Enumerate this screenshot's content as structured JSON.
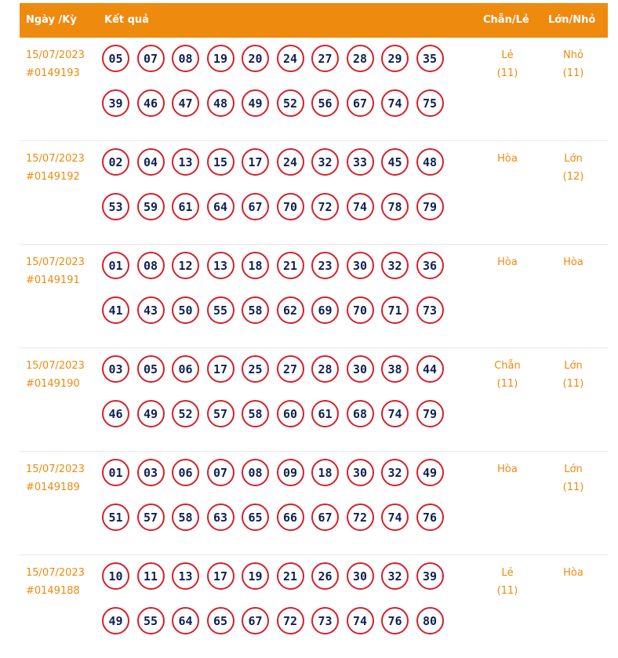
{
  "header": {
    "date_label": "Ngày /Kỳ",
    "result_label": "Kết quả",
    "parity_label": "Chẵn/Lẻ",
    "size_label": "Lớn/Nhỏ"
  },
  "rows": [
    {
      "date": "15/07/2023",
      "draw": "#0149193",
      "numbers_row1": [
        "05",
        "07",
        "08",
        "19",
        "20",
        "24",
        "27",
        "28",
        "29",
        "35"
      ],
      "numbers_row2": [
        "39",
        "46",
        "47",
        "48",
        "49",
        "52",
        "56",
        "67",
        "74",
        "75"
      ],
      "parity": "Lẻ",
      "parity_count": "(11)",
      "size": "Nhỏ",
      "size_count": "(11)"
    },
    {
      "date": "15/07/2023",
      "draw": "#0149192",
      "numbers_row1": [
        "02",
        "04",
        "13",
        "15",
        "17",
        "24",
        "32",
        "33",
        "45",
        "48"
      ],
      "numbers_row2": [
        "53",
        "59",
        "61",
        "64",
        "67",
        "70",
        "72",
        "74",
        "78",
        "79"
      ],
      "parity": "Hòa",
      "parity_count": "",
      "size": "Lớn",
      "size_count": "(12)"
    },
    {
      "date": "15/07/2023",
      "draw": "#0149191",
      "numbers_row1": [
        "01",
        "08",
        "12",
        "13",
        "18",
        "21",
        "23",
        "30",
        "32",
        "36"
      ],
      "numbers_row2": [
        "41",
        "43",
        "50",
        "55",
        "58",
        "62",
        "69",
        "70",
        "71",
        "73"
      ],
      "parity": "Hòa",
      "parity_count": "",
      "size": "Hòa",
      "size_count": ""
    },
    {
      "date": "15/07/2023",
      "draw": "#0149190",
      "numbers_row1": [
        "03",
        "05",
        "06",
        "17",
        "25",
        "27",
        "28",
        "30",
        "38",
        "44"
      ],
      "numbers_row2": [
        "46",
        "49",
        "52",
        "57",
        "58",
        "60",
        "61",
        "68",
        "74",
        "79"
      ],
      "parity": "Chẵn",
      "parity_count": "(11)",
      "size": "Lớn",
      "size_count": "(11)"
    },
    {
      "date": "15/07/2023",
      "draw": "#0149189",
      "numbers_row1": [
        "01",
        "03",
        "06",
        "07",
        "08",
        "09",
        "18",
        "30",
        "32",
        "49"
      ],
      "numbers_row2": [
        "51",
        "57",
        "58",
        "63",
        "65",
        "66",
        "67",
        "72",
        "74",
        "76"
      ],
      "parity": "Hòa",
      "parity_count": "",
      "size": "Lớn",
      "size_count": "(11)"
    },
    {
      "date": "15/07/2023",
      "draw": "#0149188",
      "numbers_row1": [
        "10",
        "11",
        "13",
        "17",
        "19",
        "21",
        "26",
        "30",
        "32",
        "39"
      ],
      "numbers_row2": [
        "49",
        "55",
        "64",
        "65",
        "67",
        "72",
        "73",
        "74",
        "76",
        "80"
      ],
      "parity": "Lẻ",
      "parity_count": "(11)",
      "size": "Hòa",
      "size_count": ""
    }
  ],
  "colors": {
    "header_bg": "#ee8a0e",
    "accent_text": "#ee8a0e",
    "ball_border": "#d4202a",
    "ball_text": "#0d2151"
  }
}
